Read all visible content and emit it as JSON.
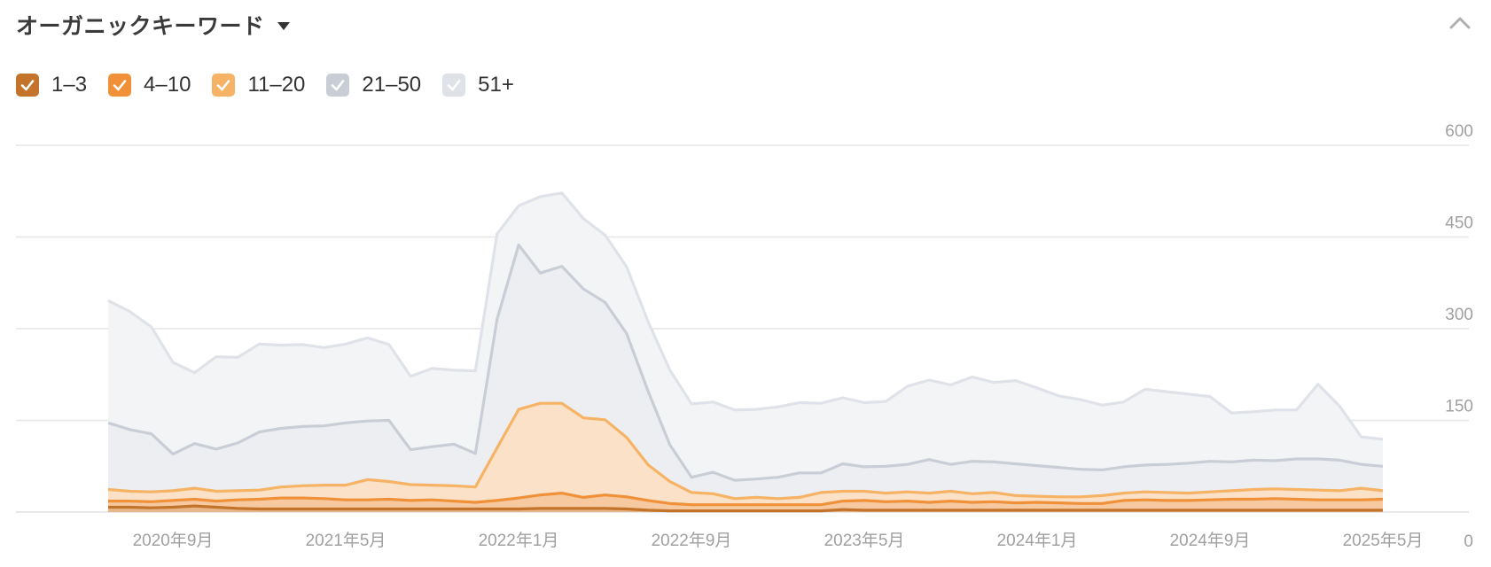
{
  "header": {
    "title": "オーガニックキーワード"
  },
  "legend": [
    {
      "label": "1–3",
      "color": "#c4742a"
    },
    {
      "label": "4–10",
      "color": "#f0913a"
    },
    {
      "label": "11–20",
      "color": "#f6b365"
    },
    {
      "label": "21–50",
      "color": "#c9ced6"
    },
    {
      "label": "51+",
      "color": "#dfe2e8"
    }
  ],
  "chart_data": {
    "type": "area",
    "stacked": true,
    "grid": true,
    "legend_position": "top-left",
    "ylim": [
      0,
      600
    ],
    "yticks": [
      0,
      150,
      300,
      450,
      600
    ],
    "xticks": [
      "2020年9月",
      "2021年5月",
      "2022年1月",
      "2022年9月",
      "2023年5月",
      "2024年1月",
      "2024年9月",
      "2025年5月"
    ],
    "x_points": 60,
    "series": [
      {
        "name": "1–3",
        "color": "#c4742a",
        "fill": "#e7b78c",
        "values": [
          8,
          8,
          7,
          8,
          10,
          8,
          6,
          5,
          5,
          5,
          5,
          5,
          5,
          5,
          5,
          5,
          5,
          5,
          5,
          5,
          6,
          6,
          6,
          6,
          5,
          3,
          2,
          2,
          2,
          2,
          2,
          2,
          2,
          2,
          4,
          3,
          3,
          3,
          3,
          3,
          3,
          3,
          3,
          3,
          3,
          3,
          3,
          3,
          3,
          3,
          3,
          3,
          3,
          3,
          3,
          3,
          3,
          3,
          3,
          3
        ]
      },
      {
        "name": "4–10",
        "color": "#f0913a",
        "fill": "#f6c9a0",
        "values": [
          10,
          10,
          10,
          11,
          11,
          10,
          14,
          16,
          18,
          18,
          17,
          15,
          15,
          16,
          14,
          15,
          13,
          11,
          14,
          18,
          22,
          25,
          18,
          22,
          20,
          16,
          12,
          10,
          10,
          10,
          10,
          10,
          10,
          10,
          14,
          16,
          14,
          15,
          13,
          15,
          13,
          14,
          12,
          13,
          12,
          11,
          11,
          16,
          17,
          16,
          16,
          17,
          18,
          18,
          19,
          18,
          17,
          17,
          17,
          18
        ]
      },
      {
        "name": "11–20",
        "color": "#f6b365",
        "fill": "#fbe1c8",
        "values": [
          19,
          16,
          16,
          16,
          18,
          16,
          15,
          15,
          18,
          20,
          22,
          24,
          33,
          29,
          26,
          24,
          25,
          25,
          86,
          145,
          150,
          147,
          130,
          123,
          97,
          58,
          36,
          20,
          18,
          10,
          12,
          10,
          12,
          20,
          16,
          15,
          14,
          15,
          15,
          16,
          14,
          15,
          12,
          10,
          10,
          11,
          13,
          12,
          13,
          13,
          12,
          13,
          14,
          16,
          16,
          16,
          16,
          15,
          19,
          14
        ]
      },
      {
        "name": "21–50",
        "color": "#c9ced6",
        "fill": "#eceef2",
        "values": [
          109,
          101,
          95,
          60,
          73,
          69,
          78,
          95,
          96,
          97,
          97,
          102,
          96,
          100,
          57,
          63,
          68,
          55,
          210,
          269,
          213,
          224,
          211,
          192,
          170,
          120,
          60,
          25,
          35,
          30,
          30,
          35,
          40,
          32,
          45,
          40,
          44,
          45,
          55,
          44,
          53,
          50,
          52,
          50,
          48,
          45,
          42,
          43,
          44,
          46,
          49,
          50,
          47,
          48,
          46,
          50,
          51,
          50,
          39,
          40
        ]
      },
      {
        "name": "51+",
        "color": "#dfe2e8",
        "fill": "#f3f4f6",
        "values": [
          200,
          193,
          175,
          150,
          116,
          151,
          140,
          144,
          136,
          134,
          128,
          129,
          136,
          124,
          120,
          128,
          121,
          135,
          140,
          64,
          125,
          120,
          115,
          110,
          109,
          114,
          122,
          120,
          115,
          115,
          114,
          115,
          115,
          114,
          108,
          105,
          106,
          128,
          130,
          130,
          138,
          130,
          136,
          127,
          117,
          114,
          106,
          106,
          124,
          119,
          113,
          106,
          80,
          79,
          83,
          80,
          122,
          88,
          45,
          44
        ]
      }
    ]
  }
}
